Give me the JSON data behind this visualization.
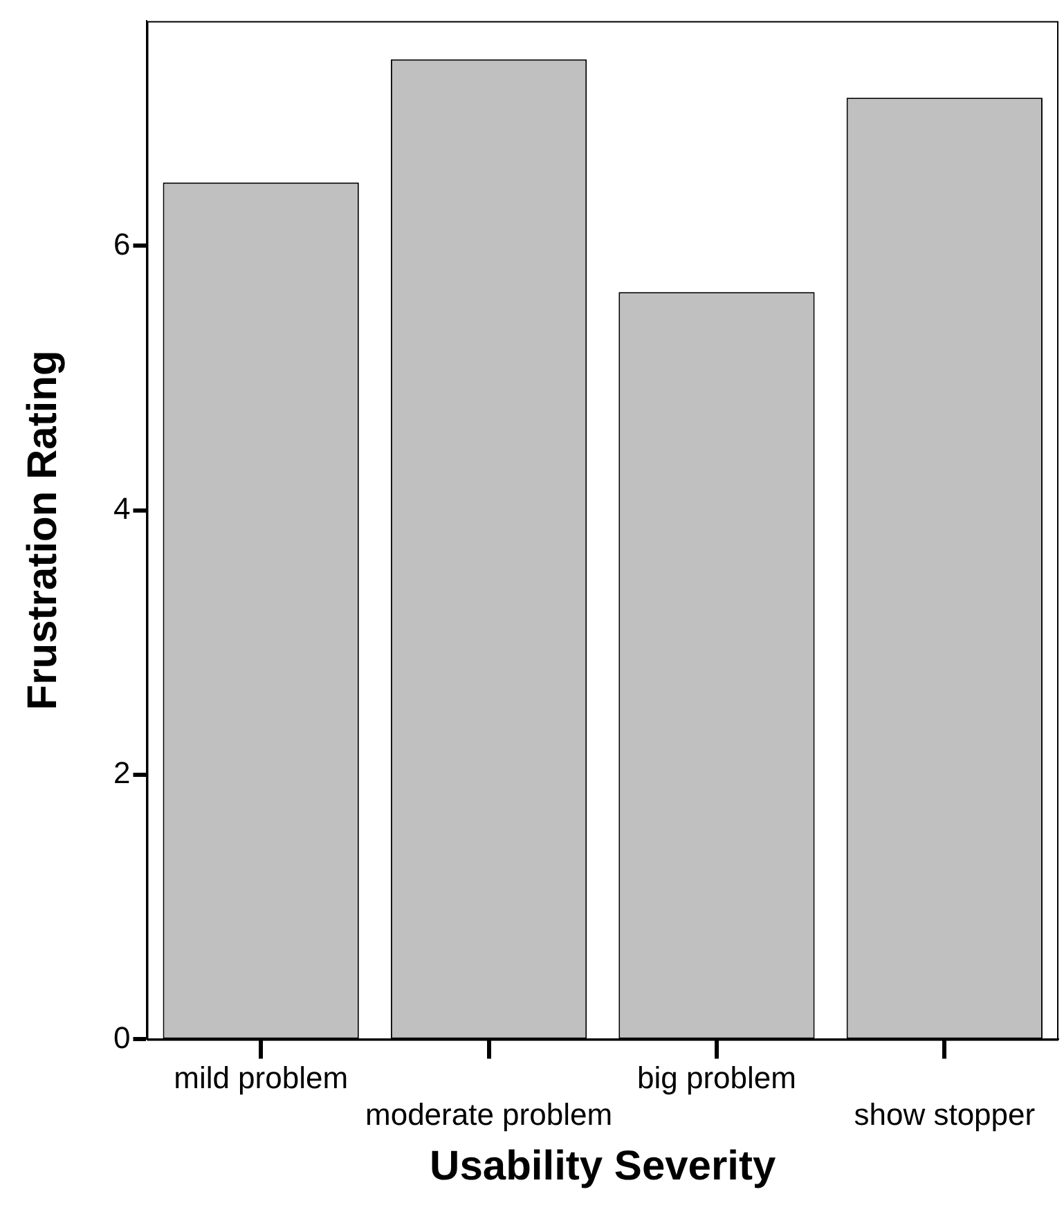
{
  "chart_data": {
    "type": "bar",
    "xlabel": "Usability Severity",
    "ylabel": "Frustration Rating",
    "categories": [
      "mild problem",
      "moderate problem",
      "big problem",
      "show stopper"
    ],
    "values": [
      6.48,
      7.41,
      5.65,
      7.12
    ],
    "color": "#c0c0c0",
    "ylim": [
      0,
      7.7
    ],
    "yticks": [
      0,
      2,
      4,
      6
    ],
    "grid": false,
    "legend": false
  }
}
